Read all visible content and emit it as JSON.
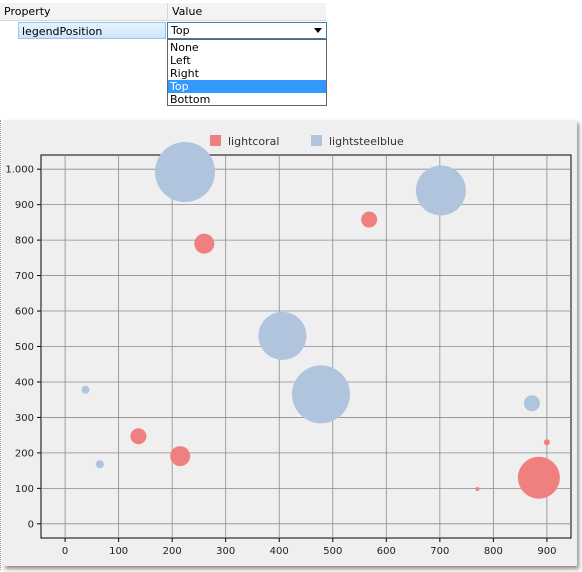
{
  "property_grid": {
    "header_property": "Property",
    "header_value": "Value",
    "row_property": "legendPosition",
    "row_value": "Top",
    "options": [
      "None",
      "Left",
      "Right",
      "Top",
      "Bottom"
    ],
    "selected_index": 3
  },
  "chart_data": {
    "type": "scatter",
    "subtype": "bubble",
    "legend_position": "top",
    "grid": true,
    "xlim": [
      -45,
      945
    ],
    "ylim": [
      -40,
      1040
    ],
    "x_ticks": [
      0,
      100,
      200,
      300,
      400,
      500,
      600,
      700,
      800,
      900
    ],
    "x_tick_labels": [
      "0",
      "100",
      "200",
      "300",
      "400",
      "500",
      "600",
      "700",
      "800",
      "900"
    ],
    "y_ticks": [
      0,
      100,
      200,
      300,
      400,
      500,
      600,
      700,
      800,
      900,
      1000
    ],
    "y_tick_labels": [
      "0",
      "100",
      "200",
      "300",
      "400",
      "500",
      "600",
      "700",
      "800",
      "900",
      "1.000"
    ],
    "series": [
      {
        "name": "lightcoral",
        "color": "#f08080",
        "points": [
          {
            "x": 260,
            "y": 790,
            "size": 10
          },
          {
            "x": 568,
            "y": 858,
            "size": 8
          },
          {
            "x": 137,
            "y": 247,
            "size": 8
          },
          {
            "x": 215,
            "y": 191,
            "size": 10
          },
          {
            "x": 900,
            "y": 230,
            "size": 3
          },
          {
            "x": 770,
            "y": 98,
            "size": 2
          },
          {
            "x": 885,
            "y": 130,
            "size": 21
          }
        ]
      },
      {
        "name": "lightsteelblue",
        "color": "#b0c4de",
        "points": [
          {
            "x": 224,
            "y": 992,
            "size": 30
          },
          {
            "x": 702,
            "y": 940,
            "size": 25
          },
          {
            "x": 406,
            "y": 530,
            "size": 24
          },
          {
            "x": 478,
            "y": 365,
            "size": 29
          },
          {
            "x": 38,
            "y": 378,
            "size": 4
          },
          {
            "x": 65,
            "y": 168,
            "size": 4
          },
          {
            "x": 872,
            "y": 340,
            "size": 8
          }
        ]
      }
    ]
  }
}
